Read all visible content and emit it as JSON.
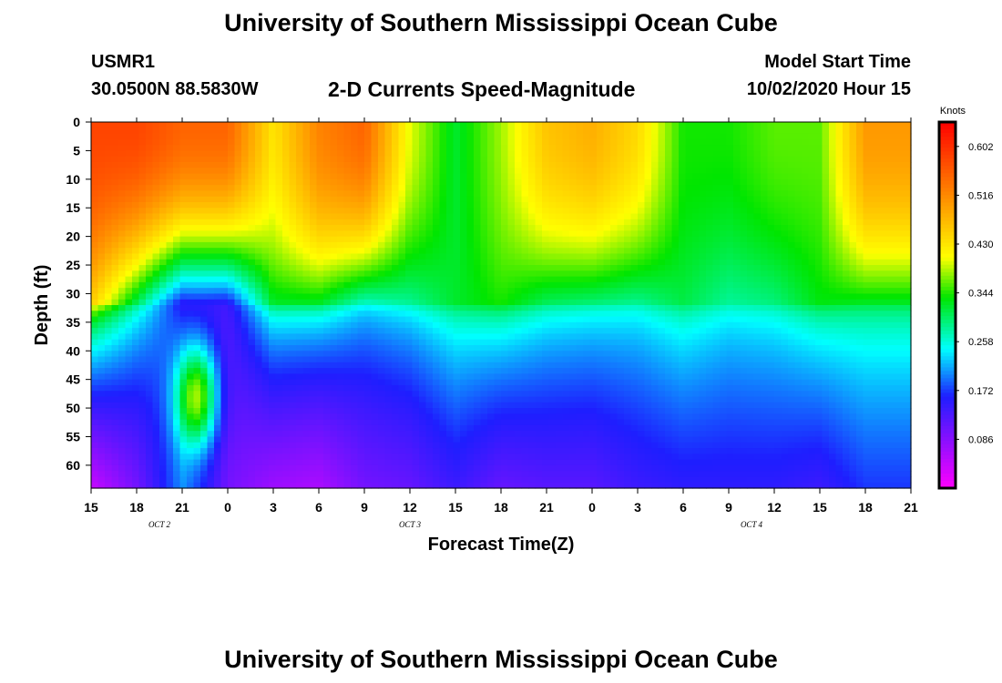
{
  "header": {
    "title": "University of Southern Mississippi Ocean Cube",
    "station_id": "USMR1",
    "station_coords": "30.0500N 88.5830W",
    "model_label": "Model Start Time",
    "model_date": "10/02/2020 Hour 15",
    "footer_title": "University of Southern Mississippi Ocean Cube"
  },
  "chart_data": {
    "type": "heatmap",
    "title": "2-D Currents Speed-Magnitude",
    "xlabel": "Forecast Time(Z)",
    "ylabel": "Depth (ft)",
    "x_ticks": [
      "15",
      "18",
      "21",
      "0",
      "3",
      "6",
      "9",
      "12",
      "15",
      "18",
      "21",
      "0",
      "3",
      "6",
      "9",
      "12",
      "15",
      "18",
      "21"
    ],
    "date_labels": [
      {
        "tick_index": 1.5,
        "label": "OCT 2"
      },
      {
        "tick_index": 7,
        "label": "OCT 3"
      },
      {
        "tick_index": 14.5,
        "label": "OCT 4"
      }
    ],
    "y_ticks": [
      0,
      5,
      10,
      15,
      20,
      25,
      30,
      35,
      40,
      45,
      50,
      55,
      60
    ],
    "ylim": [
      0,
      64
    ],
    "colorbar": {
      "unit": "Knots",
      "ticks": [
        "0.086",
        "0.172",
        "0.258",
        "0.344",
        "0.430",
        "0.516",
        "0.602"
      ],
      "range": [
        0.0,
        0.645
      ]
    },
    "x_hours": [
      0,
      3,
      6,
      9,
      12,
      15,
      18,
      21,
      24,
      27,
      30,
      33,
      36,
      39,
      42,
      45,
      48,
      51,
      54
    ],
    "surface_speed": [
      0.58,
      0.58,
      0.55,
      0.55,
      0.43,
      0.52,
      0.55,
      0.4,
      0.32,
      0.38,
      0.46,
      0.48,
      0.44,
      0.34,
      0.34,
      0.36,
      0.36,
      0.5,
      0.5
    ],
    "mid_speed": [
      0.45,
      0.3,
      0.14,
      0.14,
      0.32,
      0.32,
      0.26,
      0.28,
      0.32,
      0.34,
      0.3,
      0.29,
      0.28,
      0.31,
      0.28,
      0.29,
      0.33,
      0.32,
      0.32
    ],
    "bottom_speed": [
      0.04,
      0.1,
      0.2,
      0.1,
      0.07,
      0.06,
      0.1,
      0.11,
      0.14,
      0.11,
      0.12,
      0.12,
      0.14,
      0.15,
      0.15,
      0.15,
      0.14,
      0.17,
      0.17
    ]
  }
}
